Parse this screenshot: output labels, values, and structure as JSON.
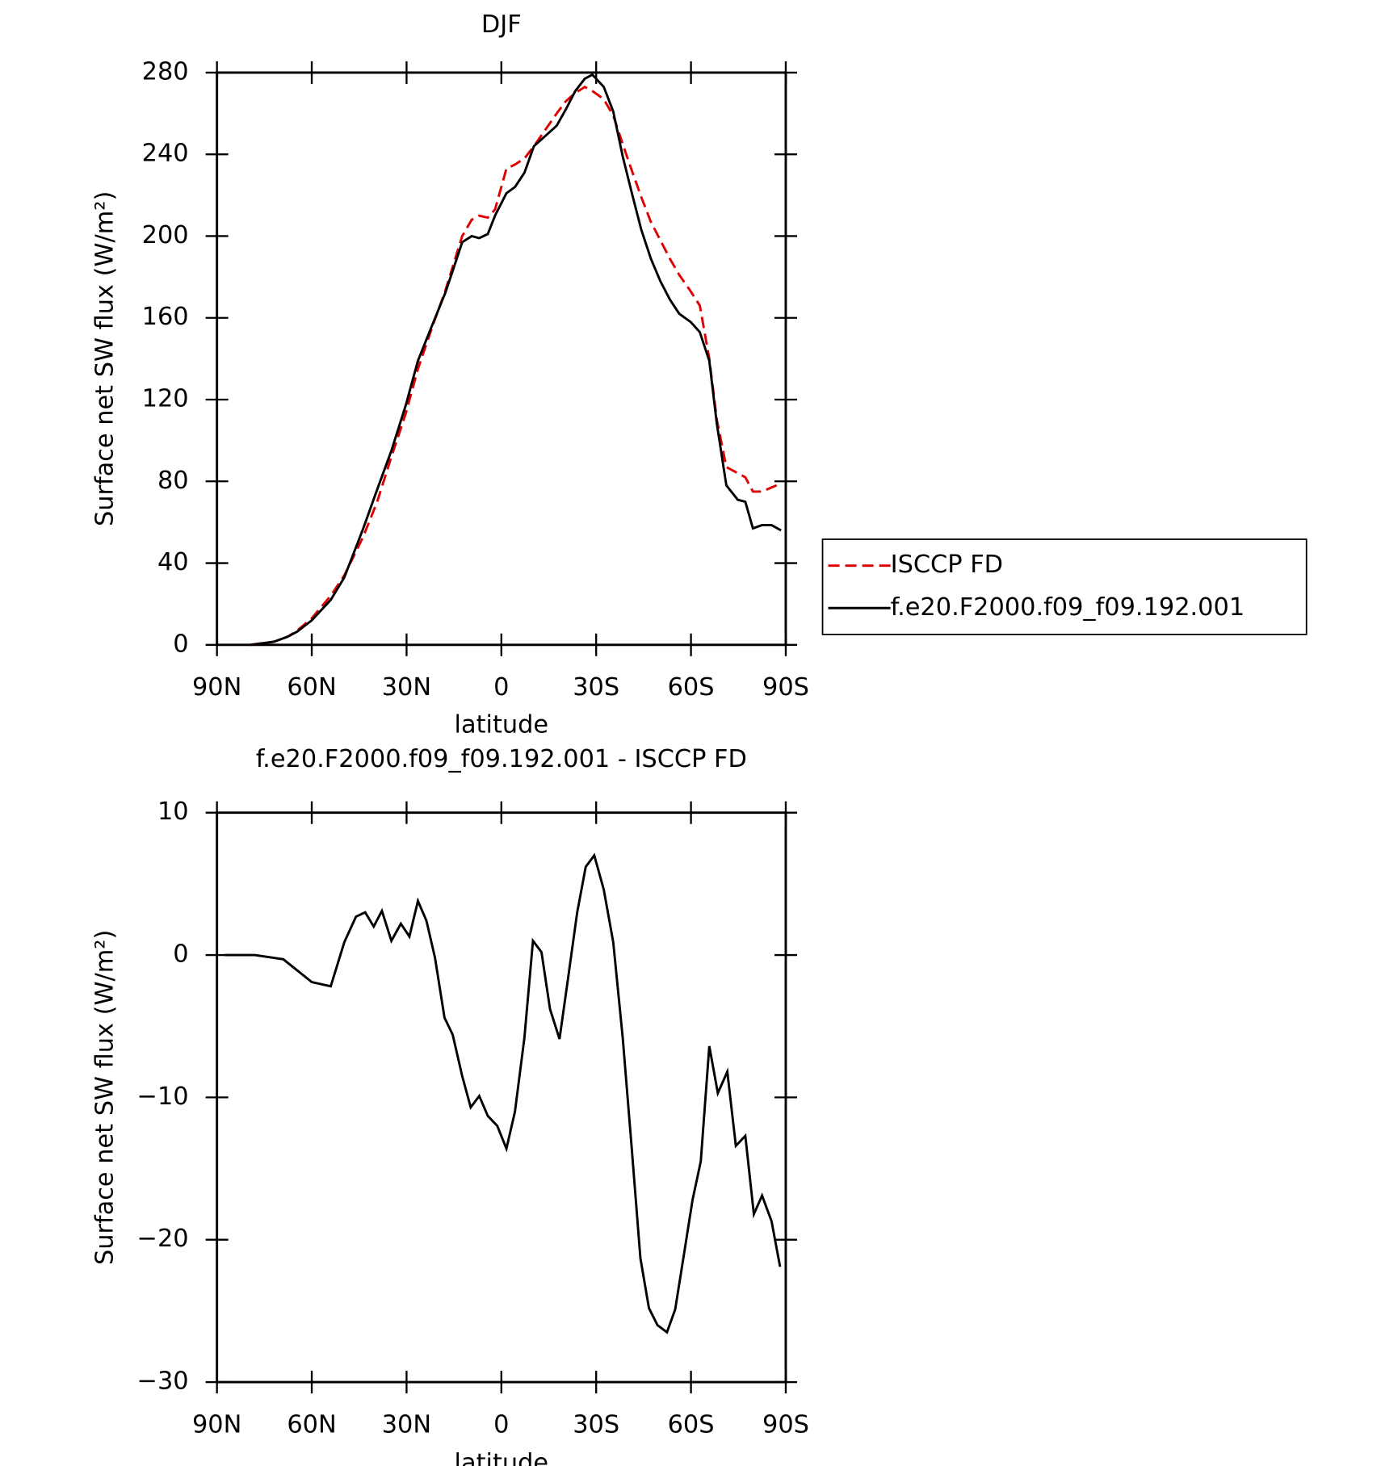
{
  "chart_data": [
    {
      "type": "line",
      "title": "DJF",
      "xlabel": "latitude",
      "ylabel": "Surface net SW flux (W/m²)",
      "xlim": [
        90,
        -90
      ],
      "xticks": [
        {
          "value": 90,
          "label": "90N"
        },
        {
          "value": 60,
          "label": "60N"
        },
        {
          "value": 30,
          "label": "30N"
        },
        0,
        {
          "value": -30,
          "label": "30S"
        },
        {
          "value": -60,
          "label": "60S"
        },
        {
          "value": -90,
          "label": "90S"
        }
      ],
      "ylim": [
        0,
        280
      ],
      "yticks": [
        0,
        40,
        80,
        120,
        160,
        200,
        240,
        280
      ],
      "legend": "outside right",
      "x": [
        79.5,
        72,
        67.6,
        64.6,
        60,
        54,
        49.7,
        43.7,
        39.3,
        34.8,
        30.3,
        26.4,
        22,
        17.8,
        15.4,
        12.4,
        9.4,
        7,
        4.3,
        2,
        -1.6,
        -4.3,
        -7.3,
        -10.3,
        -13.9,
        -17.5,
        -20.4,
        -23.4,
        -26.4,
        -28.8,
        -32.4,
        -35.4,
        -38.4,
        -41.3,
        -44.3,
        -47.3,
        -50.3,
        -53.3,
        -56.3,
        -59.9,
        -62.8,
        -65.8,
        -68.2,
        -71.2,
        -74.8,
        -77.2,
        -79.6,
        -82.5,
        -85.5,
        -88.5
      ],
      "series": [
        {
          "name": "ISCCP FD",
          "color": "#e00000",
          "linestyle": "dashed",
          "values": [
            0,
            1.5,
            4,
            7,
            13,
            24,
            34,
            53,
            70,
            92,
            113,
            135,
            155,
            173,
            185,
            200,
            208,
            210,
            209,
            213,
            233,
            235,
            238,
            244,
            252,
            260,
            266,
            270,
            273,
            271,
            267,
            259,
            245,
            232,
            219,
            207,
            198,
            189,
            181,
            173,
            166,
            140,
            110,
            87,
            84,
            82,
            75,
            75,
            77,
            79
          ]
        },
        {
          "name": "f.e20.F2000.f09_f09.192.001",
          "color": "#000000",
          "linestyle": "solid",
          "values": [
            0,
            1.5,
            4,
            6.5,
            12,
            22,
            33,
            57,
            76,
            95,
            117,
            139,
            156,
            172,
            183,
            197,
            200,
            199,
            201,
            210,
            221,
            224,
            231,
            244,
            249,
            254,
            262,
            271,
            277,
            279,
            273,
            261,
            239,
            221,
            203,
            189,
            178,
            169,
            162,
            158,
            153,
            139,
            108,
            78,
            71,
            70,
            57,
            58.6,
            58.6,
            56
          ]
        }
      ]
    },
    {
      "type": "line",
      "title": "f.e20.F2000.f09_f09.192.001 - ISCCP FD",
      "xlabel": "latitude",
      "ylabel": "Surface net SW flux (W/m²)",
      "xlim": [
        90,
        -90
      ],
      "xticks": [
        {
          "value": 90,
          "label": "90N"
        },
        {
          "value": 60,
          "label": "60N"
        },
        {
          "value": 30,
          "label": "30N"
        },
        0,
        {
          "value": -30,
          "label": "30S"
        },
        {
          "value": -60,
          "label": "60S"
        },
        {
          "value": -90,
          "label": "90S"
        }
      ],
      "ylim": [
        -30,
        10
      ],
      "yticks": [
        {
          "value": -30,
          "label": "−30"
        },
        {
          "value": -20,
          "label": "−20"
        },
        {
          "value": -10,
          "label": "−10"
        },
        0,
        10
      ],
      "x": [
        87.6,
        78,
        69,
        60,
        54,
        49.7,
        46,
        43.1,
        40.4,
        37.8,
        34.8,
        31.8,
        29.1,
        26.4,
        23.7,
        21,
        18,
        15.4,
        12.4,
        9.7,
        7,
        4.3,
        1.3,
        -1.6,
        -4.3,
        -7.3,
        -10,
        -12.7,
        -15.4,
        -18.4,
        -21,
        -24,
        -26.7,
        -29.4,
        -32.4,
        -35.4,
        -38.4,
        -41.3,
        -44,
        -46.7,
        -49.4,
        -52.4,
        -55,
        -57.8,
        -60.5,
        -63.1,
        -65.8,
        -68.5,
        -71.5,
        -74.2,
        -77.2,
        -79.9,
        -82.5,
        -85.5,
        -88.2
      ],
      "series": [
        {
          "name": "f.e20.F2000.f09_f09.192.001 - ISCCP FD",
          "color": "#000000",
          "linestyle": "solid",
          "values": [
            0,
            0,
            -0.3,
            -1.9,
            -2.2,
            0.9,
            2.7,
            3.0,
            2.0,
            3.1,
            1.0,
            2.2,
            1.3,
            3.8,
            2.4,
            -0.2,
            -4.4,
            -5.6,
            -8.5,
            -10.7,
            -9.9,
            -11.3,
            -12,
            -13.6,
            -11,
            -5.8,
            1,
            0.2,
            -3.8,
            -5.9,
            -1.8,
            3,
            6.2,
            7,
            4.6,
            0.9,
            -5.8,
            -13.7,
            -21.3,
            -24.8,
            -26,
            -26.5,
            -24.9,
            -21,
            -17.2,
            -14.5,
            -6.4,
            -9.7,
            -8.2,
            -13.4,
            -12.7,
            -18.2,
            -16.9,
            -18.7,
            -21.9
          ]
        }
      ]
    }
  ]
}
